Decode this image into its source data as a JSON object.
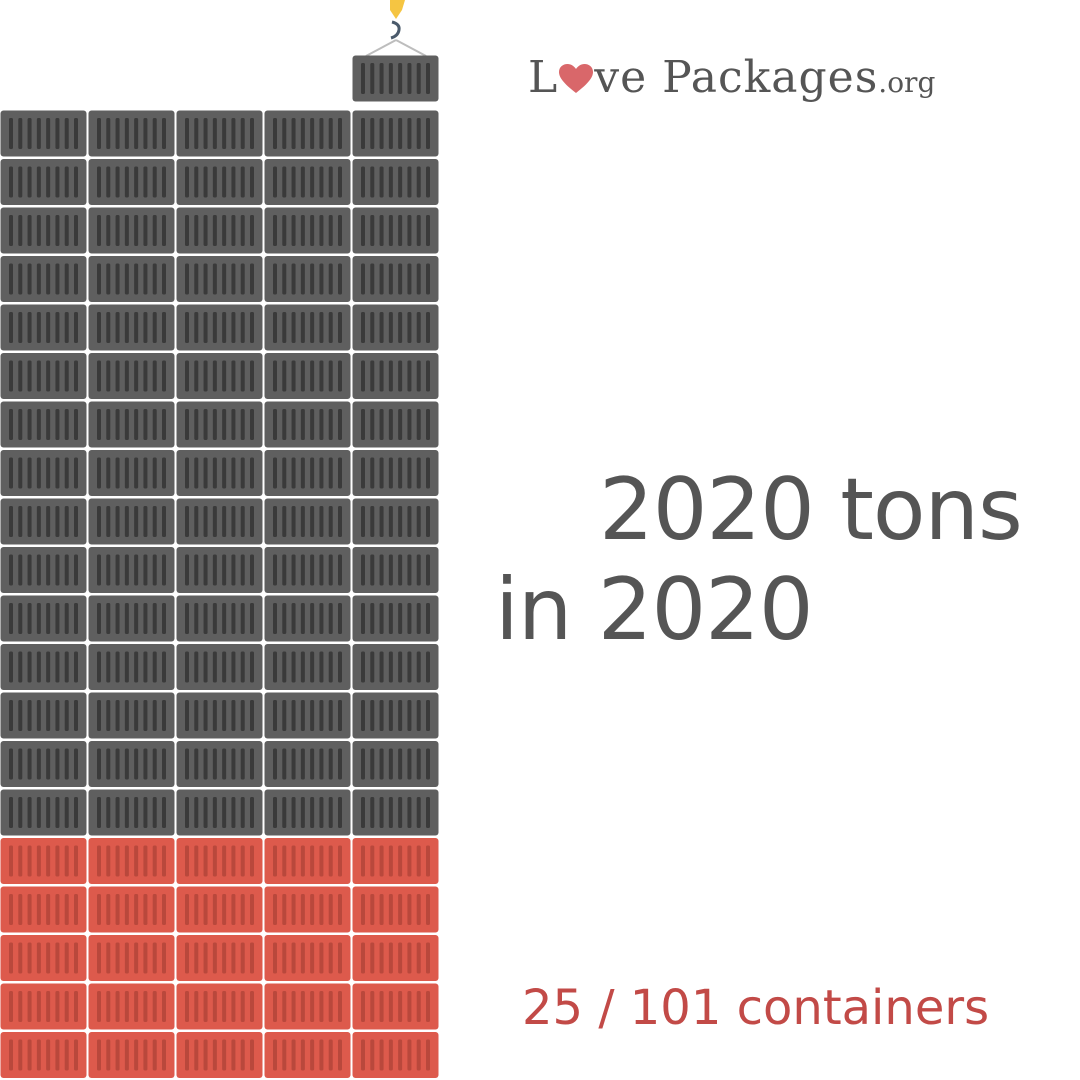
{
  "logo": {
    "text_before_heart": "L",
    "text_after_heart": "ve Packages",
    "suffix": ".org",
    "heart_color": "#d9676a",
    "text_color": "#555555"
  },
  "headline": {
    "line1": "2020 tons",
    "line2": "in 2020"
  },
  "counter": {
    "text": "25 / 101 containers",
    "filled": 25,
    "total": 101
  },
  "colors": {
    "container_gray": "#5f5f5f",
    "container_red": "#dd5a4c",
    "text_gray": "#555555",
    "counter_red": "#c24a47",
    "hook_yellow": "#f5c542"
  },
  "icons": {
    "crane_hook": "crane-hook-icon",
    "heart": "heart-icon"
  }
}
